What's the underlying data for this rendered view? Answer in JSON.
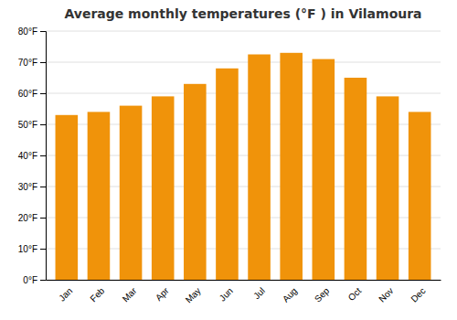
{
  "chart_data": {
    "type": "bar",
    "title": "Average monthly temperatures (°F ) in Vilamoura",
    "categories": [
      "Jan",
      "Feb",
      "Mar",
      "Apr",
      "May",
      "Jun",
      "Jul",
      "Aug",
      "Sep",
      "Oct",
      "Nov",
      "Dec"
    ],
    "values": [
      53,
      54,
      56,
      59,
      63,
      68,
      72.5,
      73,
      71,
      65,
      59,
      54
    ],
    "color": "#F0930A",
    "ylim": [
      0,
      80
    ],
    "yticks": [
      {
        "value": 0,
        "label": "0°F"
      },
      {
        "value": 10,
        "label": "10°F"
      },
      {
        "value": 20,
        "label": "20°F"
      },
      {
        "value": 30,
        "label": "30°F"
      },
      {
        "value": 40,
        "label": "40°F"
      },
      {
        "value": 50,
        "label": "50°F"
      },
      {
        "value": 60,
        "label": "60°F"
      },
      {
        "value": 70,
        "label": "70°F"
      },
      {
        "value": 80,
        "label": "80°F"
      }
    ],
    "grid": true
  }
}
